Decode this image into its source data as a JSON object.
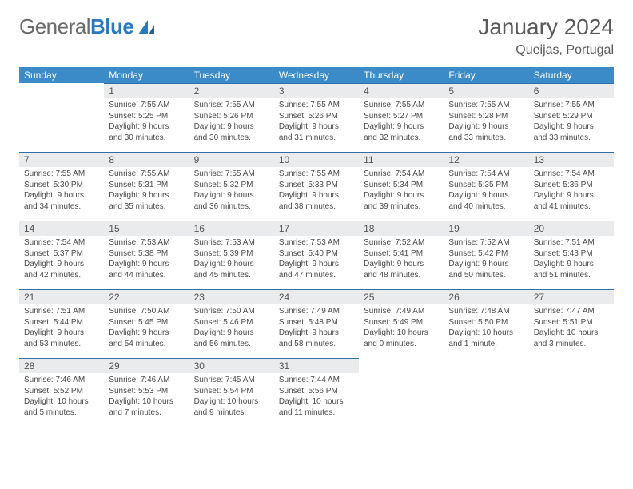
{
  "brand": {
    "word1": "General",
    "word2": "Blue"
  },
  "title": "January 2024",
  "location": "Queijas, Portugal",
  "colors": {
    "header_bg": "#3b8bc9",
    "header_text": "#ffffff",
    "daynum_bg": "#e9ebec",
    "row_border": "#2f6fa8",
    "body_text": "#4a4a4a",
    "page_bg": "#ffffff",
    "logo_gray": "#6a6a6a",
    "logo_blue": "#2a7ac0"
  },
  "weekdays": [
    "Sunday",
    "Monday",
    "Tuesday",
    "Wednesday",
    "Thursday",
    "Friday",
    "Saturday"
  ],
  "grid": [
    [
      {
        "n": "",
        "s": "",
        "t": "",
        "d": "",
        "empty": true
      },
      {
        "n": "1",
        "s": "Sunrise: 7:55 AM",
        "t": "Sunset: 5:25 PM",
        "d": "Daylight: 9 hours and 30 minutes."
      },
      {
        "n": "2",
        "s": "Sunrise: 7:55 AM",
        "t": "Sunset: 5:26 PM",
        "d": "Daylight: 9 hours and 30 minutes."
      },
      {
        "n": "3",
        "s": "Sunrise: 7:55 AM",
        "t": "Sunset: 5:26 PM",
        "d": "Daylight: 9 hours and 31 minutes."
      },
      {
        "n": "4",
        "s": "Sunrise: 7:55 AM",
        "t": "Sunset: 5:27 PM",
        "d": "Daylight: 9 hours and 32 minutes."
      },
      {
        "n": "5",
        "s": "Sunrise: 7:55 AM",
        "t": "Sunset: 5:28 PM",
        "d": "Daylight: 9 hours and 33 minutes."
      },
      {
        "n": "6",
        "s": "Sunrise: 7:55 AM",
        "t": "Sunset: 5:29 PM",
        "d": "Daylight: 9 hours and 33 minutes."
      }
    ],
    [
      {
        "n": "7",
        "s": "Sunrise: 7:55 AM",
        "t": "Sunset: 5:30 PM",
        "d": "Daylight: 9 hours and 34 minutes."
      },
      {
        "n": "8",
        "s": "Sunrise: 7:55 AM",
        "t": "Sunset: 5:31 PM",
        "d": "Daylight: 9 hours and 35 minutes."
      },
      {
        "n": "9",
        "s": "Sunrise: 7:55 AM",
        "t": "Sunset: 5:32 PM",
        "d": "Daylight: 9 hours and 36 minutes."
      },
      {
        "n": "10",
        "s": "Sunrise: 7:55 AM",
        "t": "Sunset: 5:33 PM",
        "d": "Daylight: 9 hours and 38 minutes."
      },
      {
        "n": "11",
        "s": "Sunrise: 7:54 AM",
        "t": "Sunset: 5:34 PM",
        "d": "Daylight: 9 hours and 39 minutes."
      },
      {
        "n": "12",
        "s": "Sunrise: 7:54 AM",
        "t": "Sunset: 5:35 PM",
        "d": "Daylight: 9 hours and 40 minutes."
      },
      {
        "n": "13",
        "s": "Sunrise: 7:54 AM",
        "t": "Sunset: 5:36 PM",
        "d": "Daylight: 9 hours and 41 minutes."
      }
    ],
    [
      {
        "n": "14",
        "s": "Sunrise: 7:54 AM",
        "t": "Sunset: 5:37 PM",
        "d": "Daylight: 9 hours and 42 minutes."
      },
      {
        "n": "15",
        "s": "Sunrise: 7:53 AM",
        "t": "Sunset: 5:38 PM",
        "d": "Daylight: 9 hours and 44 minutes."
      },
      {
        "n": "16",
        "s": "Sunrise: 7:53 AM",
        "t": "Sunset: 5:39 PM",
        "d": "Daylight: 9 hours and 45 minutes."
      },
      {
        "n": "17",
        "s": "Sunrise: 7:53 AM",
        "t": "Sunset: 5:40 PM",
        "d": "Daylight: 9 hours and 47 minutes."
      },
      {
        "n": "18",
        "s": "Sunrise: 7:52 AM",
        "t": "Sunset: 5:41 PM",
        "d": "Daylight: 9 hours and 48 minutes."
      },
      {
        "n": "19",
        "s": "Sunrise: 7:52 AM",
        "t": "Sunset: 5:42 PM",
        "d": "Daylight: 9 hours and 50 minutes."
      },
      {
        "n": "20",
        "s": "Sunrise: 7:51 AM",
        "t": "Sunset: 5:43 PM",
        "d": "Daylight: 9 hours and 51 minutes."
      }
    ],
    [
      {
        "n": "21",
        "s": "Sunrise: 7:51 AM",
        "t": "Sunset: 5:44 PM",
        "d": "Daylight: 9 hours and 53 minutes."
      },
      {
        "n": "22",
        "s": "Sunrise: 7:50 AM",
        "t": "Sunset: 5:45 PM",
        "d": "Daylight: 9 hours and 54 minutes."
      },
      {
        "n": "23",
        "s": "Sunrise: 7:50 AM",
        "t": "Sunset: 5:46 PM",
        "d": "Daylight: 9 hours and 56 minutes."
      },
      {
        "n": "24",
        "s": "Sunrise: 7:49 AM",
        "t": "Sunset: 5:48 PM",
        "d": "Daylight: 9 hours and 58 minutes."
      },
      {
        "n": "25",
        "s": "Sunrise: 7:49 AM",
        "t": "Sunset: 5:49 PM",
        "d": "Daylight: 10 hours and 0 minutes."
      },
      {
        "n": "26",
        "s": "Sunrise: 7:48 AM",
        "t": "Sunset: 5:50 PM",
        "d": "Daylight: 10 hours and 1 minute."
      },
      {
        "n": "27",
        "s": "Sunrise: 7:47 AM",
        "t": "Sunset: 5:51 PM",
        "d": "Daylight: 10 hours and 3 minutes."
      }
    ],
    [
      {
        "n": "28",
        "s": "Sunrise: 7:46 AM",
        "t": "Sunset: 5:52 PM",
        "d": "Daylight: 10 hours and 5 minutes."
      },
      {
        "n": "29",
        "s": "Sunrise: 7:46 AM",
        "t": "Sunset: 5:53 PM",
        "d": "Daylight: 10 hours and 7 minutes."
      },
      {
        "n": "30",
        "s": "Sunrise: 7:45 AM",
        "t": "Sunset: 5:54 PM",
        "d": "Daylight: 10 hours and 9 minutes."
      },
      {
        "n": "31",
        "s": "Sunrise: 7:44 AM",
        "t": "Sunset: 5:56 PM",
        "d": "Daylight: 10 hours and 11 minutes."
      },
      {
        "n": "",
        "s": "",
        "t": "",
        "d": "",
        "empty": true
      },
      {
        "n": "",
        "s": "",
        "t": "",
        "d": "",
        "empty": true
      },
      {
        "n": "",
        "s": "",
        "t": "",
        "d": "",
        "empty": true
      }
    ]
  ]
}
